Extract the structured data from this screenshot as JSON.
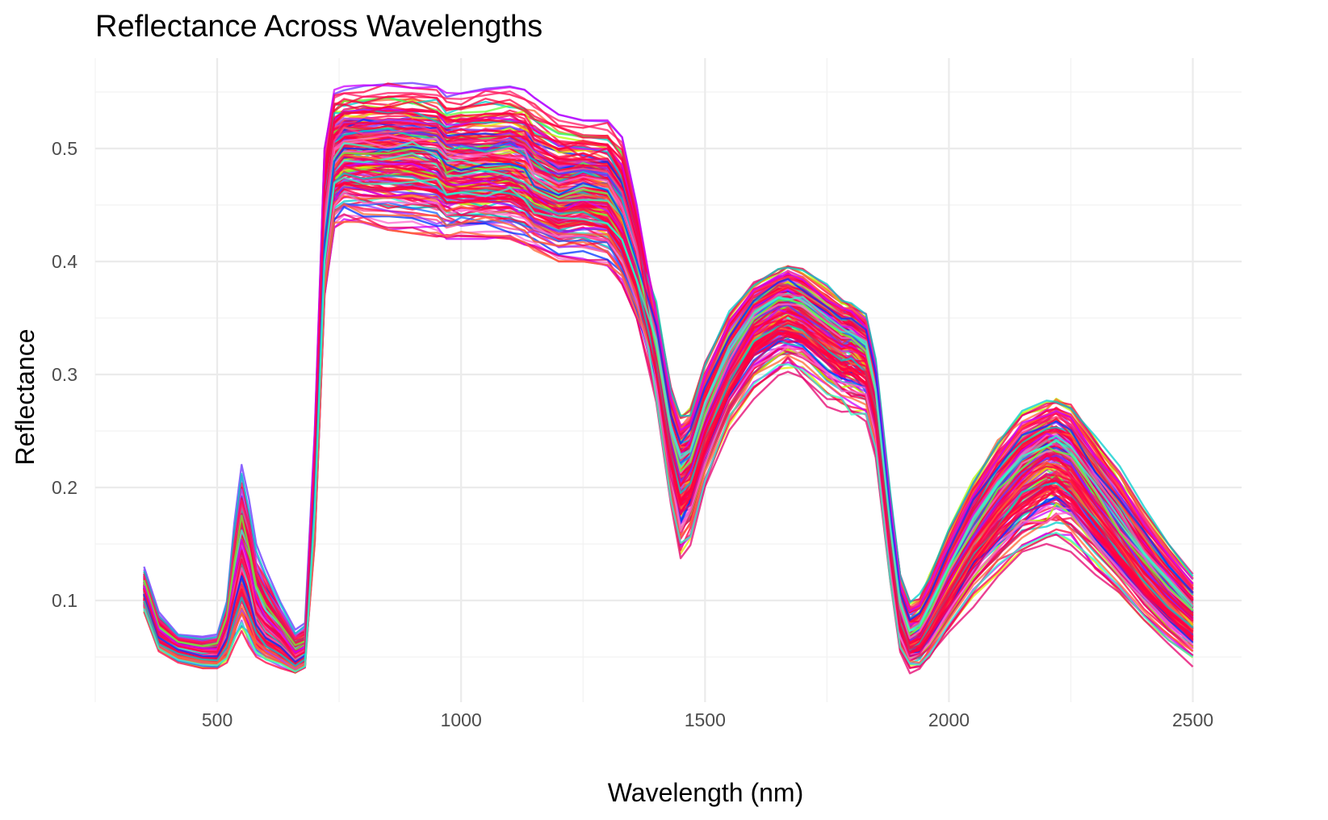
{
  "chart_data": {
    "type": "line",
    "title": "Reflectance Across Wavelengths",
    "xlabel": "Wavelength (nm)",
    "ylabel": "Reflectance",
    "xlim": [
      250,
      2600
    ],
    "ylim": [
      0.01,
      0.58
    ],
    "x_ticks": [
      500,
      1000,
      1500,
      2000,
      2500
    ],
    "x_tick_labels": [
      "500",
      "1000",
      "1500",
      "2000",
      "2500"
    ],
    "y_ticks": [
      0.1,
      0.2,
      0.3,
      0.4,
      0.5
    ],
    "y_tick_labels": [
      "0.1",
      "0.2",
      "0.3",
      "0.4",
      "0.5"
    ],
    "grid": true,
    "legend": "none",
    "series_count": 200,
    "series_opacity": 0.75,
    "series_palette": [
      "#ff0040",
      "#ff1a66",
      "#e6006e",
      "#ff3d8b",
      "#cc00ff",
      "#9933ff",
      "#6633ff",
      "#0033ff",
      "#1a66ff",
      "#00cccc",
      "#33ffcc",
      "#66ff33",
      "#b3ff00",
      "#e6e600",
      "#ff6633",
      "#ff9900",
      "#ff66cc",
      "#a64dff"
    ],
    "x": [
      350,
      380,
      420,
      470,
      500,
      520,
      535,
      550,
      565,
      580,
      600,
      630,
      660,
      680,
      700,
      720,
      740,
      760,
      800,
      850,
      900,
      950,
      970,
      1000,
      1050,
      1100,
      1130,
      1150,
      1200,
      1250,
      1300,
      1330,
      1360,
      1400,
      1430,
      1450,
      1470,
      1500,
      1550,
      1600,
      1650,
      1670,
      1700,
      1750,
      1780,
      1800,
      1830,
      1850,
      1880,
      1900,
      1920,
      1940,
      1960,
      2000,
      2050,
      2100,
      2150,
      2200,
      2220,
      2250,
      2300,
      2350,
      2400,
      2450,
      2500
    ],
    "mean_spectrum": [
      0.11,
      0.07,
      0.06,
      0.055,
      0.055,
      0.075,
      0.11,
      0.14,
      0.12,
      0.09,
      0.075,
      0.065,
      0.05,
      0.055,
      0.2,
      0.42,
      0.49,
      0.5,
      0.5,
      0.5,
      0.5,
      0.495,
      0.485,
      0.485,
      0.485,
      0.485,
      0.48,
      0.47,
      0.46,
      0.465,
      0.46,
      0.44,
      0.4,
      0.32,
      0.24,
      0.21,
      0.22,
      0.26,
      0.31,
      0.345,
      0.36,
      0.36,
      0.355,
      0.34,
      0.33,
      0.33,
      0.32,
      0.28,
      0.16,
      0.09,
      0.065,
      0.07,
      0.085,
      0.12,
      0.16,
      0.19,
      0.215,
      0.23,
      0.23,
      0.22,
      0.19,
      0.16,
      0.13,
      0.105,
      0.085
    ],
    "upper_envelope": [
      0.13,
      0.09,
      0.07,
      0.068,
      0.07,
      0.1,
      0.17,
      0.22,
      0.19,
      0.15,
      0.13,
      0.1,
      0.075,
      0.08,
      0.25,
      0.5,
      0.552,
      0.555,
      0.556,
      0.558,
      0.558,
      0.555,
      0.55,
      0.55,
      0.553,
      0.556,
      0.552,
      0.545,
      0.53,
      0.525,
      0.525,
      0.51,
      0.45,
      0.37,
      0.3,
      0.275,
      0.28,
      0.32,
      0.365,
      0.39,
      0.4,
      0.405,
      0.4,
      0.385,
      0.375,
      0.37,
      0.36,
      0.32,
      0.2,
      0.13,
      0.105,
      0.11,
      0.13,
      0.17,
      0.215,
      0.25,
      0.275,
      0.285,
      0.29,
      0.285,
      0.255,
      0.225,
      0.19,
      0.16,
      0.13
    ],
    "lower_envelope": [
      0.09,
      0.055,
      0.045,
      0.04,
      0.04,
      0.045,
      0.06,
      0.07,
      0.06,
      0.05,
      0.045,
      0.04,
      0.035,
      0.04,
      0.15,
      0.37,
      0.43,
      0.435,
      0.432,
      0.428,
      0.425,
      0.422,
      0.42,
      0.42,
      0.42,
      0.42,
      0.415,
      0.41,
      0.4,
      0.4,
      0.395,
      0.38,
      0.35,
      0.27,
      0.18,
      0.13,
      0.14,
      0.19,
      0.245,
      0.275,
      0.29,
      0.295,
      0.29,
      0.27,
      0.26,
      0.255,
      0.25,
      0.22,
      0.11,
      0.05,
      0.035,
      0.035,
      0.045,
      0.065,
      0.09,
      0.11,
      0.125,
      0.135,
      0.14,
      0.135,
      0.115,
      0.095,
      0.075,
      0.055,
      0.04
    ]
  }
}
